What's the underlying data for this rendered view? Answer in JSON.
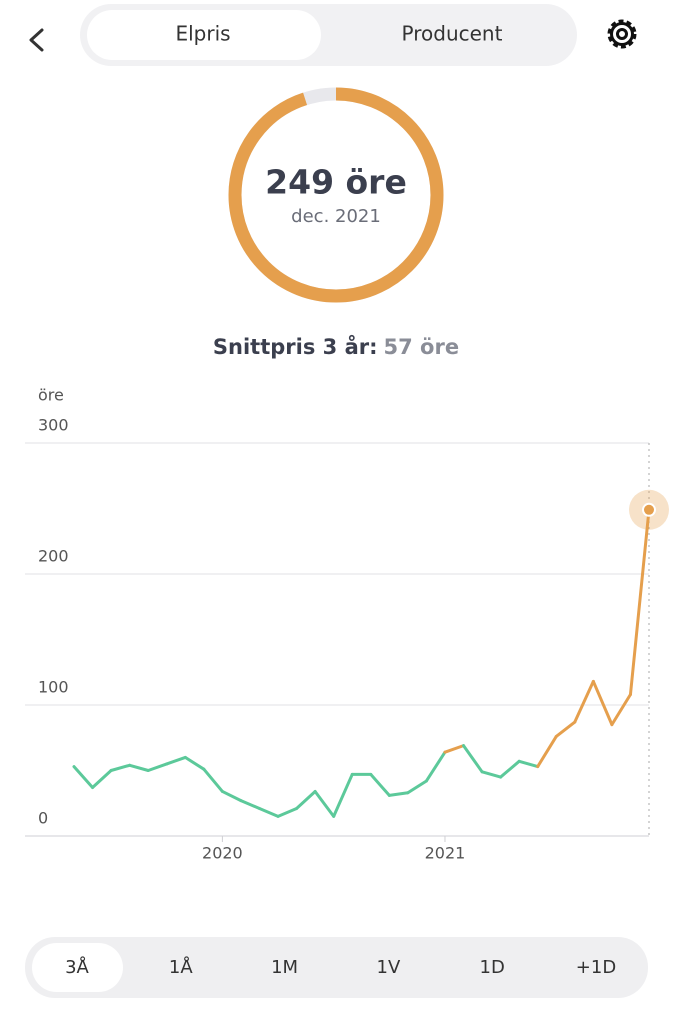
{
  "tabs": [
    "Elpris",
    "Producent"
  ],
  "gauge": {
    "value_text": "249 öre",
    "date": "dec. 2021",
    "fill_percent": 95
  },
  "average": {
    "label": "Snittpris 3 år:",
    "value": "57 öre"
  },
  "chart_data": {
    "type": "line",
    "y_label": "öre",
    "categories": [
      null,
      null,
      null,
      null,
      null,
      null,
      null,
      null,
      "2020",
      null,
      null,
      null,
      null,
      null,
      null,
      null,
      null,
      null,
      null,
      null,
      "2021",
      null,
      null,
      null,
      null,
      null,
      null,
      null,
      null,
      null,
      null,
      null
    ],
    "series": [
      {
        "values": [
          53,
          37,
          50,
          54,
          50,
          55,
          60,
          51,
          34,
          27,
          21,
          15,
          21,
          34,
          15,
          47,
          47,
          31,
          33,
          42,
          64,
          69,
          49,
          45,
          57,
          53,
          76,
          87,
          118,
          85,
          108,
          249
        ],
        "colors": [
          "#5cc99a",
          "#5cc99a",
          "#5cc99a",
          "#5cc99a",
          "#5cc99a",
          "#5cc99a",
          "#5cc99a",
          "#5cc99a",
          "#5cc99a",
          "#5cc99a",
          "#5cc99a",
          "#5cc99a",
          "#5cc99a",
          "#5cc99a",
          "#5cc99a",
          "#5cc99a",
          "#5cc99a",
          "#5cc99a",
          "#5cc99a",
          "#5cc99a",
          "#5cc99a",
          "#e59f4d",
          "#5cc99a",
          "#5cc99a",
          "#5cc99a",
          "#5cc99a",
          "#e59f4d",
          "#e59f4d",
          "#e59f4d",
          "#e59f4d",
          "#e59f4d",
          "#e59f4d"
        ]
      }
    ],
    "ylim": [
      0,
      300
    ],
    "yticks": [
      0,
      100,
      200,
      300
    ],
    "grid": true
  },
  "periods": [
    "3Å",
    "1Å",
    "1M",
    "1V",
    "1D",
    "+1D"
  ],
  "selected_period": 0
}
